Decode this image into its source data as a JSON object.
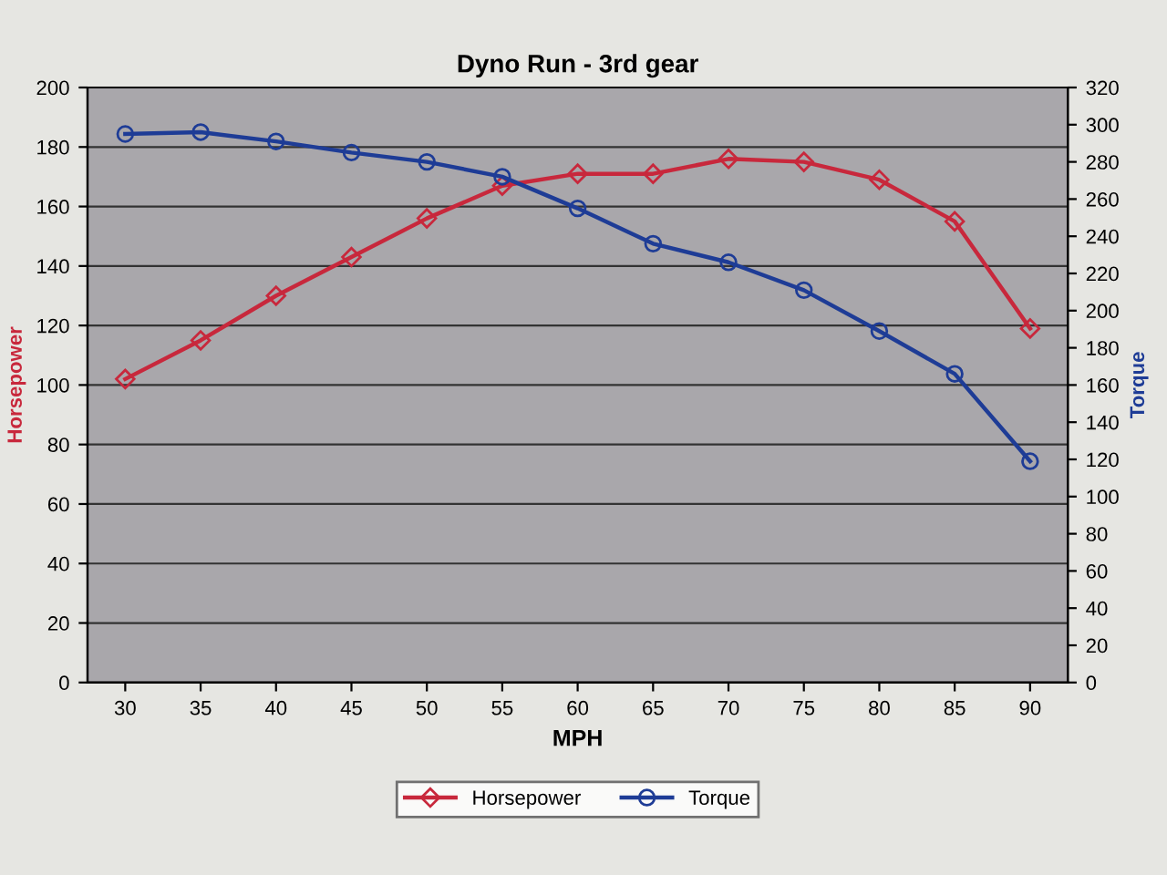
{
  "chart_data": {
    "type": "line",
    "title": "Dyno Run - 3rd gear",
    "xlabel": "MPH",
    "ylabel": "Horsepower",
    "y2label": "Torque",
    "categories": [
      "30",
      "35",
      "40",
      "45",
      "50",
      "55",
      "60",
      "65",
      "70",
      "75",
      "80",
      "85",
      "90"
    ],
    "series": [
      {
        "name": "Horsepower",
        "color": "#c8283c",
        "marker": "diamond",
        "values": [
          102,
          115,
          130,
          143,
          156,
          167,
          171,
          171,
          176,
          175,
          169,
          155,
          119
        ]
      },
      {
        "name": "Torque",
        "color": "#1e3c96",
        "marker": "circle",
        "axis": "y2",
        "values": [
          295,
          296,
          291,
          285,
          280,
          272,
          255,
          236,
          226,
          211,
          189,
          166,
          119
        ]
      }
    ],
    "ylim": [
      0,
      200
    ],
    "yticks": [
      0,
      20,
      40,
      60,
      80,
      100,
      120,
      140,
      160,
      180,
      200
    ],
    "y2lim": [
      0,
      320
    ],
    "y2ticks": [
      0,
      20,
      40,
      60,
      80,
      100,
      120,
      140,
      160,
      180,
      200,
      220,
      240,
      260,
      280,
      300,
      320
    ],
    "grid": "y",
    "legend": "bottom",
    "line_style": "solid"
  }
}
